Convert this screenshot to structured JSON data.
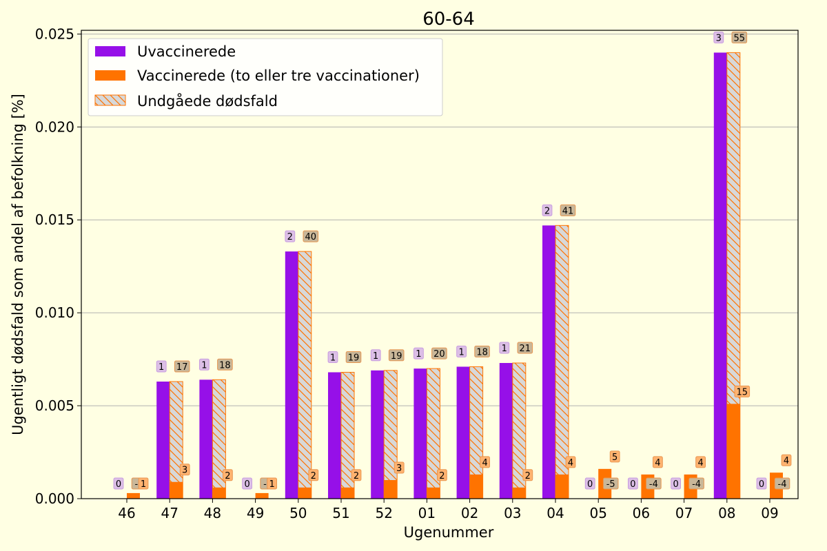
{
  "chart_data": {
    "type": "bar",
    "title": "60-64",
    "xlabel": "Ugenummer",
    "ylabel": "Ugentligt dødsfald som andel af befolkning [%]",
    "ylim": [
      0,
      0.0252
    ],
    "yticks": [
      "0.000",
      "0.005",
      "0.010",
      "0.015",
      "0.020",
      "0.025"
    ],
    "ytick_values": [
      0,
      0.005,
      0.01,
      0.015,
      0.02,
      0.025
    ],
    "grid": "horizontal",
    "legend_position": "top-left",
    "categories": [
      "46",
      "47",
      "48",
      "49",
      "50",
      "51",
      "52",
      "01",
      "02",
      "03",
      "04",
      "05",
      "06",
      "07",
      "08",
      "09"
    ],
    "series": [
      {
        "name": "Uvaccinerede",
        "color": "#9610e8",
        "values": [
          0,
          0.0063,
          0.0064,
          0,
          0.0133,
          0.0068,
          0.0069,
          0.007,
          0.0071,
          0.0073,
          0.0147,
          0,
          0,
          0,
          0.024,
          0
        ],
        "labels": [
          "0",
          "1",
          "1",
          "0",
          "2",
          "1",
          "1",
          "1",
          "1",
          "1",
          "2",
          "0",
          "0",
          "0",
          "3",
          "0"
        ]
      },
      {
        "name": "Vaccinerede (to eller tre vaccinationer)",
        "color": "#ff7300",
        "values": [
          0.0003,
          0.0009,
          0.0006,
          0.0003,
          0.0006,
          0.0006,
          0.001,
          0.0006,
          0.0013,
          0.0006,
          0.0013,
          0.0016,
          0.0013,
          0.0013,
          0.0051,
          0.0014
        ],
        "labels": [
          "1",
          "3",
          "2",
          "1",
          "2",
          "2",
          "3",
          "2",
          "4",
          "2",
          "4",
          "5",
          "4",
          "4",
          "15",
          "4"
        ]
      },
      {
        "name": "Undgåede dødsfald",
        "color": "#d8d8d8",
        "edge_color": "#ff7300",
        "hatch": "diagonal",
        "values": [
          0,
          0.0063,
          0.0064,
          0,
          0.0133,
          0.0068,
          0.0069,
          0.007,
          0.0071,
          0.0073,
          0.0147,
          0,
          0,
          0,
          0.024,
          0
        ],
        "labels": [
          "-1",
          "17",
          "18",
          "-1",
          "40",
          "19",
          "19",
          "20",
          "18",
          "21",
          "41",
          "-5",
          "-4",
          "-4",
          "55",
          "-4"
        ]
      }
    ]
  }
}
